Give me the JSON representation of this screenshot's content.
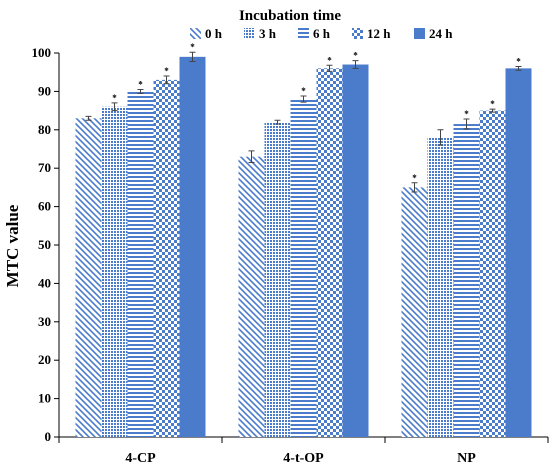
{
  "chart_data": {
    "type": "bar",
    "legend_title": "Incubation time",
    "legend_position": "top",
    "ylabel": "MTC value",
    "xlabel": "",
    "ylim": [
      0,
      100
    ],
    "yticks": [
      0,
      10,
      20,
      30,
      40,
      50,
      60,
      70,
      80,
      90,
      100
    ],
    "grid": false,
    "categories": [
      "4-CP",
      "4-t-OP",
      "NP"
    ],
    "series": [
      {
        "name": "0 h",
        "pattern": "diagonal",
        "values": [
          83,
          73,
          65
        ],
        "errors": [
          0.5,
          1.5,
          1.2
        ],
        "significant": [
          false,
          false,
          true
        ]
      },
      {
        "name": "3 h",
        "pattern": "dots",
        "values": [
          86,
          82,
          78
        ],
        "errors": [
          1.0,
          0.5,
          2.0
        ],
        "significant": [
          true,
          false,
          false
        ]
      },
      {
        "name": "6 h",
        "pattern": "hlines",
        "values": [
          90,
          88,
          81.5
        ],
        "errors": [
          0.5,
          0.8,
          1.3
        ],
        "significant": [
          true,
          true,
          true
        ]
      },
      {
        "name": "12 h",
        "pattern": "checker",
        "values": [
          93,
          96,
          85
        ],
        "errors": [
          1.0,
          0.8,
          0.4
        ],
        "significant": [
          true,
          true,
          true
        ]
      },
      {
        "name": "24 h",
        "pattern": "solid",
        "values": [
          99,
          97,
          96
        ],
        "errors": [
          1.2,
          1.0,
          0.5
        ],
        "significant": [
          true,
          true,
          true
        ]
      }
    ],
    "marker_symbol": "*",
    "color": "#4a7ccb"
  }
}
